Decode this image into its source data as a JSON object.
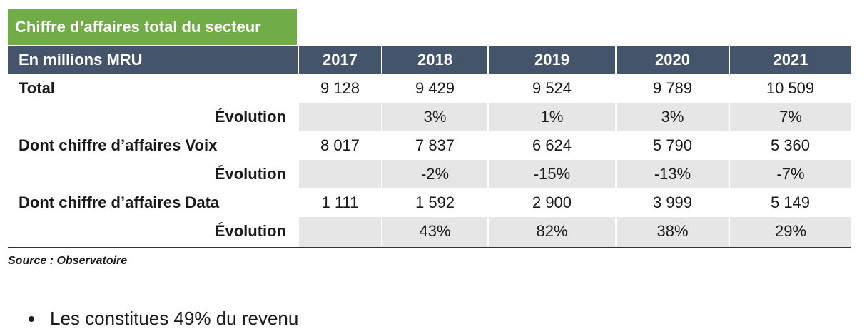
{
  "title": "Chiffre d’affaires total du secteur",
  "table": {
    "header": [
      "En millions MRU",
      "2017",
      "2018",
      "2019",
      "2020",
      "2021"
    ],
    "rows": [
      {
        "label": "Total",
        "values": [
          "9 128",
          "9 429",
          "9 524",
          "9 789",
          "10 509"
        ]
      },
      {
        "label": "Évolution",
        "values": [
          "",
          "3%",
          "1%",
          "3%",
          "7%"
        ]
      },
      {
        "label": "Dont chiffre d’affaires Voix",
        "values": [
          "8 017",
          "7 837",
          "6 624",
          "5 790",
          "5 360"
        ]
      },
      {
        "label": "Évolution",
        "values": [
          "",
          "-2%",
          "-15%",
          "-13%",
          "-7%"
        ]
      },
      {
        "label": "Dont chiffre d’affaires Data",
        "values": [
          "1 111",
          "1 592",
          "2 900",
          "3 999",
          "5 149"
        ]
      },
      {
        "label": "Évolution",
        "values": [
          "",
          "43%",
          "82%",
          "38%",
          "29%"
        ]
      }
    ]
  },
  "source": "Source : Observatoire",
  "bullet": "Les constitues 49% du revenu",
  "colors": {
    "title_bg": "#70ad47",
    "header_bg": "#44546a",
    "evolution_bg": "#e7e6e6"
  }
}
